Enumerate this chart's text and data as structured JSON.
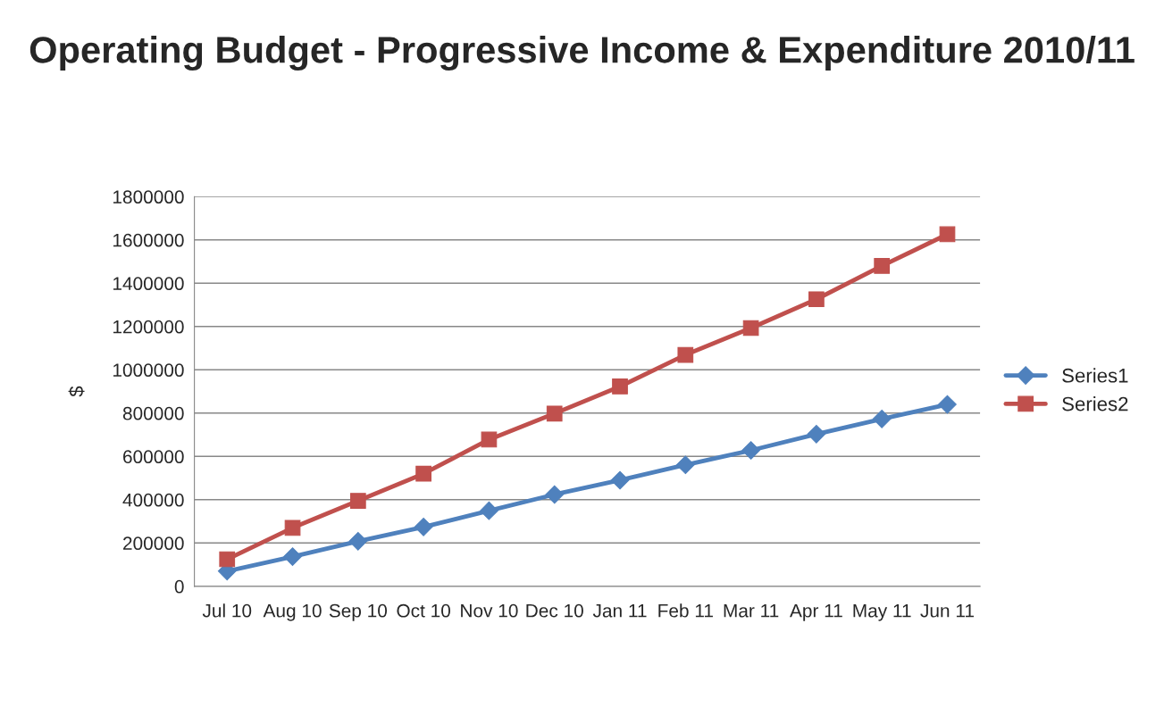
{
  "chart_data": {
    "type": "line",
    "title": "Operating Budget - Progressive Income & Expenditure 2010/11",
    "ylabel": "$",
    "categories": [
      "Jul 10",
      "Aug 10",
      "Sep 10",
      "Oct 10",
      "Nov 10",
      "Dec 10",
      "Jan 11",
      "Feb 11",
      "Mar 11",
      "Apr 11",
      "May 11",
      "Jun 11"
    ],
    "series": [
      {
        "name": "Series1",
        "color": "#4f81bd",
        "marker": "diamond",
        "values": [
          70000,
          137000,
          208000,
          274000,
          349000,
          424000,
          490000,
          561000,
          628000,
          703000,
          773000,
          840000
        ]
      },
      {
        "name": "Series2",
        "color": "#c0504d",
        "marker": "square",
        "values": [
          125000,
          270000,
          395000,
          520000,
          678000,
          798000,
          923000,
          1069000,
          1193000,
          1326000,
          1480000,
          1626000
        ]
      }
    ],
    "ylim": [
      0,
      1800000
    ],
    "yticks": [
      0,
      200000,
      400000,
      600000,
      800000,
      1000000,
      1200000,
      1400000,
      1600000,
      1800000
    ],
    "grid": "y",
    "legend": "right",
    "line_style": "solid"
  }
}
